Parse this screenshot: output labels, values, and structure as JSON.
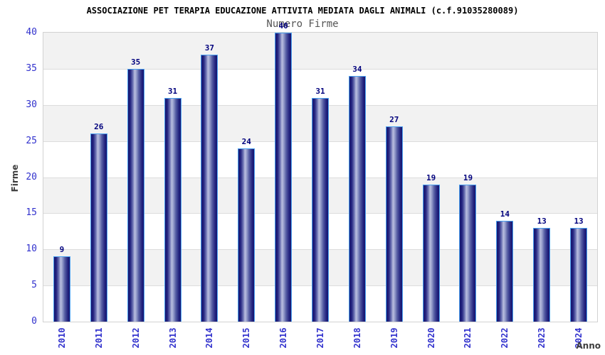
{
  "chart_data": {
    "type": "bar",
    "title": "ASSOCIAZIONE PET TERAPIA EDUCAZIONE ATTIVITA MEDIATA DAGLI ANIMALI (c.f.91035280089)",
    "subtitle": "Numero Firme",
    "xlabel": "Anno",
    "ylabel": "Firme",
    "categories": [
      "2010",
      "2011",
      "2012",
      "2013",
      "2014",
      "2015",
      "2016",
      "2017",
      "2018",
      "2019",
      "2020",
      "2021",
      "2022",
      "2023",
      "2024"
    ],
    "values": [
      9,
      26,
      35,
      31,
      37,
      24,
      40,
      31,
      34,
      27,
      19,
      19,
      14,
      13,
      13
    ],
    "ylim": [
      0,
      40
    ],
    "ytick_step": 5,
    "yticks": [
      0,
      5,
      10,
      15,
      20,
      25,
      30,
      35,
      40
    ],
    "legend": "none",
    "grid": "horizontal bands every 5 units, alternating shaded/plain fill with light gridlines",
    "colors": {
      "title": "#000000",
      "subtitle": "#555555",
      "tick_label": "#3232cd",
      "value_label": "#00007d",
      "axis_title": "#3d3d3d",
      "bar_border": "#4aa0f0",
      "bar_dark": "#16166f",
      "bar_mid": "#565ea4",
      "bar_light": "#b9bedf",
      "band_shaded": "#f2f2f2",
      "band_plain": "#ffffff",
      "gridline": "#dcdcdc",
      "plot_border": "#d2d2d2",
      "background": "#ffffff"
    }
  }
}
